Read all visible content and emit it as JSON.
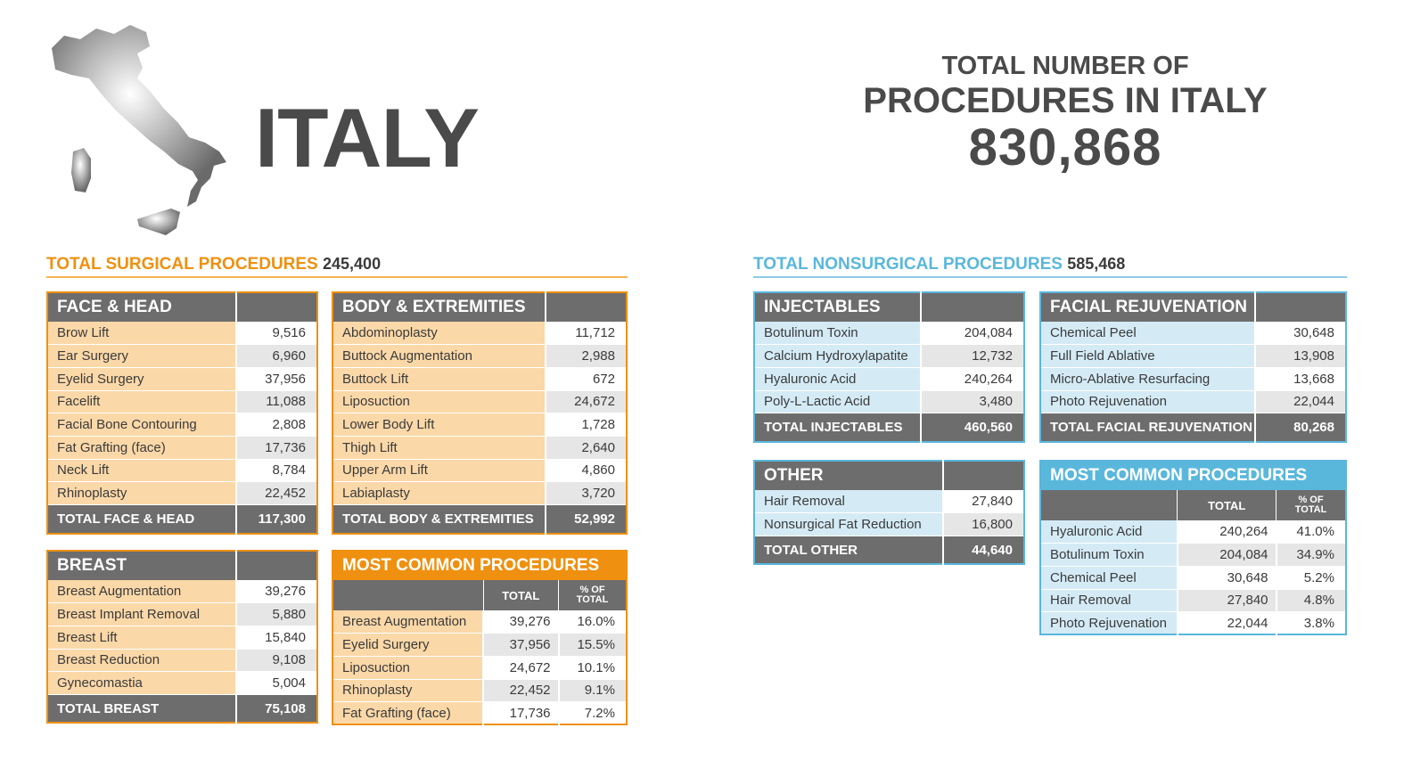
{
  "country": "ITALY",
  "total": {
    "line1": "TOTAL NUMBER OF",
    "line2": "PROCEDURES IN ITALY",
    "value": "830,868"
  },
  "surgical": {
    "label": "TOTAL SURGICAL PROCEDURES",
    "value": "245,400",
    "face_head": {
      "title": "FACE & HEAD",
      "rows": [
        {
          "label": "Brow Lift",
          "value": "9,516"
        },
        {
          "label": "Ear Surgery",
          "value": "6,960"
        },
        {
          "label": "Eyelid Surgery",
          "value": "37,956"
        },
        {
          "label": "Facelift",
          "value": "11,088"
        },
        {
          "label": "Facial Bone Contouring",
          "value": "2,808"
        },
        {
          "label": "Fat Grafting (face)",
          "value": "17,736"
        },
        {
          "label": "Neck Lift",
          "value": "8,784"
        },
        {
          "label": "Rhinoplasty",
          "value": "22,452"
        }
      ],
      "total_label": "TOTAL FACE & HEAD",
      "total_value": "117,300"
    },
    "body": {
      "title": "BODY & EXTREMITIES",
      "rows": [
        {
          "label": "Abdominoplasty",
          "value": "11,712"
        },
        {
          "label": "Buttock Augmentation",
          "value": "2,988"
        },
        {
          "label": "Buttock Lift",
          "value": "672"
        },
        {
          "label": "Liposuction",
          "value": "24,672"
        },
        {
          "label": "Lower Body Lift",
          "value": "1,728"
        },
        {
          "label": "Thigh Lift",
          "value": "2,640"
        },
        {
          "label": "Upper Arm Lift",
          "value": "4,860"
        },
        {
          "label": "Labiaplasty",
          "value": "3,720"
        }
      ],
      "total_label": "TOTAL BODY & EXTREMITIES",
      "total_value": "52,992"
    },
    "breast": {
      "title": "BREAST",
      "rows": [
        {
          "label": "Breast Augmentation",
          "value": "39,276"
        },
        {
          "label": "Breast Implant Removal",
          "value": "5,880"
        },
        {
          "label": "Breast Lift",
          "value": "15,840"
        },
        {
          "label": "Breast Reduction",
          "value": "9,108"
        },
        {
          "label": "Gynecomastia",
          "value": "5,004"
        }
      ],
      "total_label": "TOTAL BREAST",
      "total_value": "75,108"
    },
    "common": {
      "title": "MOST COMMON PROCEDURES",
      "col_total": "TOTAL",
      "col_pct_1": "% OF",
      "col_pct_2": "TOTAL",
      "rows": [
        {
          "label": "Breast Augmentation",
          "total": "39,276",
          "pct": "16.0%"
        },
        {
          "label": "Eyelid Surgery",
          "total": "37,956",
          "pct": "15.5%"
        },
        {
          "label": "Liposuction",
          "total": "24,672",
          "pct": "10.1%"
        },
        {
          "label": "Rhinoplasty",
          "total": "22,452",
          "pct": "9.1%"
        },
        {
          "label": "Fat Grafting (face)",
          "total": "17,736",
          "pct": "7.2%"
        }
      ]
    }
  },
  "nonsurgical": {
    "label": "TOTAL NONSURGICAL PROCEDURES",
    "value": "585,468",
    "injectables": {
      "title": "INJECTABLES",
      "rows": [
        {
          "label": "Botulinum Toxin",
          "value": "204,084"
        },
        {
          "label": "Calcium Hydroxylapatite",
          "value": "12,732"
        },
        {
          "label": "Hyaluronic Acid",
          "value": "240,264"
        },
        {
          "label": "Poly-L-Lactic Acid",
          "value": "3,480"
        }
      ],
      "total_label": "TOTAL INJECTABLES",
      "total_value": "460,560"
    },
    "facial": {
      "title": "FACIAL REJUVENATION",
      "rows": [
        {
          "label": "Chemical Peel",
          "value": "30,648"
        },
        {
          "label": "Full Field Ablative",
          "value": "13,908"
        },
        {
          "label": "Micro-Ablative Resurfacing",
          "value": "13,668"
        },
        {
          "label": "Photo Rejuvenation",
          "value": "22,044"
        }
      ],
      "total_label": "TOTAL FACIAL REJUVENATION",
      "total_value": "80,268"
    },
    "other": {
      "title": "OTHER",
      "rows": [
        {
          "label": "Hair Removal",
          "value": "27,840"
        },
        {
          "label": "Nonsurgical Fat Reduction",
          "value": "16,800"
        }
      ],
      "total_label": "TOTAL OTHER",
      "total_value": "44,640"
    },
    "common": {
      "title": "MOST COMMON PROCEDURES",
      "col_total": "TOTAL",
      "col_pct_1": "% OF",
      "col_pct_2": "TOTAL",
      "rows": [
        {
          "label": "Hyaluronic Acid",
          "total": "240,264",
          "pct": "41.0%"
        },
        {
          "label": "Botulinum Toxin",
          "total": "204,084",
          "pct": "34.9%"
        },
        {
          "label": "Chemical Peel",
          "total": "30,648",
          "pct": "5.2%"
        },
        {
          "label": "Hair Removal",
          "total": "27,840",
          "pct": "4.8%"
        },
        {
          "label": "Photo Rejuvenation",
          "total": "22,044",
          "pct": "3.8%"
        }
      ]
    }
  }
}
